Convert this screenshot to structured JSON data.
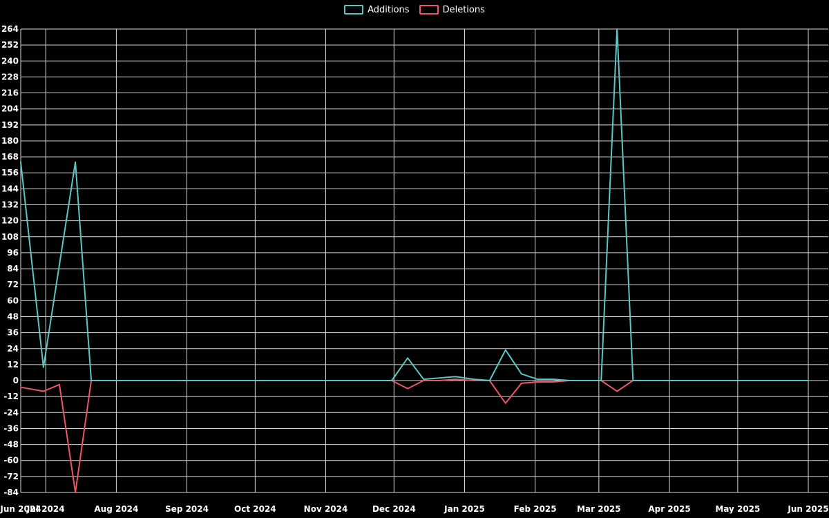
{
  "chart_data": {
    "type": "line",
    "title": "",
    "background_color": "#000000",
    "grid_color": "#d9d9d9",
    "text_color": "#ffffff",
    "grid_on": true,
    "legend": {
      "position": "top",
      "items": [
        "Additions",
        "Deletions"
      ]
    },
    "x_axis": {
      "type": "time",
      "domain_start": "2024-06-20",
      "domain_end": "2025-06-01",
      "ticks": [
        {
          "label": "Jun 2024",
          "date": "2024-06-20"
        },
        {
          "label": "Jul 2024",
          "date": "2024-07-01"
        },
        {
          "label": "Aug 2024",
          "date": "2024-08-01"
        },
        {
          "label": "Sep 2024",
          "date": "2024-09-01"
        },
        {
          "label": "Oct 2024",
          "date": "2024-10-01"
        },
        {
          "label": "Nov 2024",
          "date": "2024-11-01"
        },
        {
          "label": "Dec 2024",
          "date": "2024-12-01"
        },
        {
          "label": "Jan 2025",
          "date": "2025-01-01"
        },
        {
          "label": "Feb 2025",
          "date": "2025-02-01"
        },
        {
          "label": "Mar 2025",
          "date": "2025-03-01"
        },
        {
          "label": "Apr 2025",
          "date": "2025-04-01"
        },
        {
          "label": "May 2025",
          "date": "2025-05-01"
        },
        {
          "label": "Jun 2025",
          "date": "2025-06-01"
        }
      ]
    },
    "y_axis": {
      "min": -84,
      "max": 264,
      "tick_step": 12
    },
    "series": [
      {
        "name": "Additions",
        "key": "additions",
        "color": "#5bc7c4"
      },
      {
        "name": "Deletions",
        "key": "deletions",
        "color": "#ee5566"
      }
    ],
    "points": [
      {
        "date": "2024-06-20",
        "additions": 164,
        "deletions": -5
      },
      {
        "date": "2024-06-30",
        "additions": 10,
        "deletions": -8
      },
      {
        "date": "2024-07-07",
        "additions": 87,
        "deletions": -3
      },
      {
        "date": "2024-07-14",
        "additions": 164,
        "deletions": -84
      },
      {
        "date": "2024-07-21",
        "additions": 0,
        "deletions": 0
      },
      {
        "date": "2024-11-30",
        "additions": 0,
        "deletions": 0
      },
      {
        "date": "2024-12-07",
        "additions": 17,
        "deletions": -6
      },
      {
        "date": "2024-12-14",
        "additions": 1,
        "deletions": 0
      },
      {
        "date": "2024-12-21",
        "additions": 2,
        "deletions": 0
      },
      {
        "date": "2024-12-28",
        "additions": 3,
        "deletions": 1
      },
      {
        "date": "2025-01-05",
        "additions": 1,
        "deletions": 0
      },
      {
        "date": "2025-01-12",
        "additions": 0,
        "deletions": 0
      },
      {
        "date": "2025-01-19",
        "additions": 23,
        "deletions": -17
      },
      {
        "date": "2025-01-26",
        "additions": 5,
        "deletions": -2
      },
      {
        "date": "2025-02-02",
        "additions": 1,
        "deletions": -1
      },
      {
        "date": "2025-02-09",
        "additions": 1,
        "deletions": -1
      },
      {
        "date": "2025-02-16",
        "additions": 0,
        "deletions": 0
      },
      {
        "date": "2025-03-02",
        "additions": 0,
        "deletions": 0
      },
      {
        "date": "2025-03-09",
        "additions": 264,
        "deletions": -8
      },
      {
        "date": "2025-03-16",
        "additions": 0,
        "deletions": 0
      },
      {
        "date": "2025-06-01",
        "additions": 0,
        "deletions": 0
      }
    ]
  }
}
